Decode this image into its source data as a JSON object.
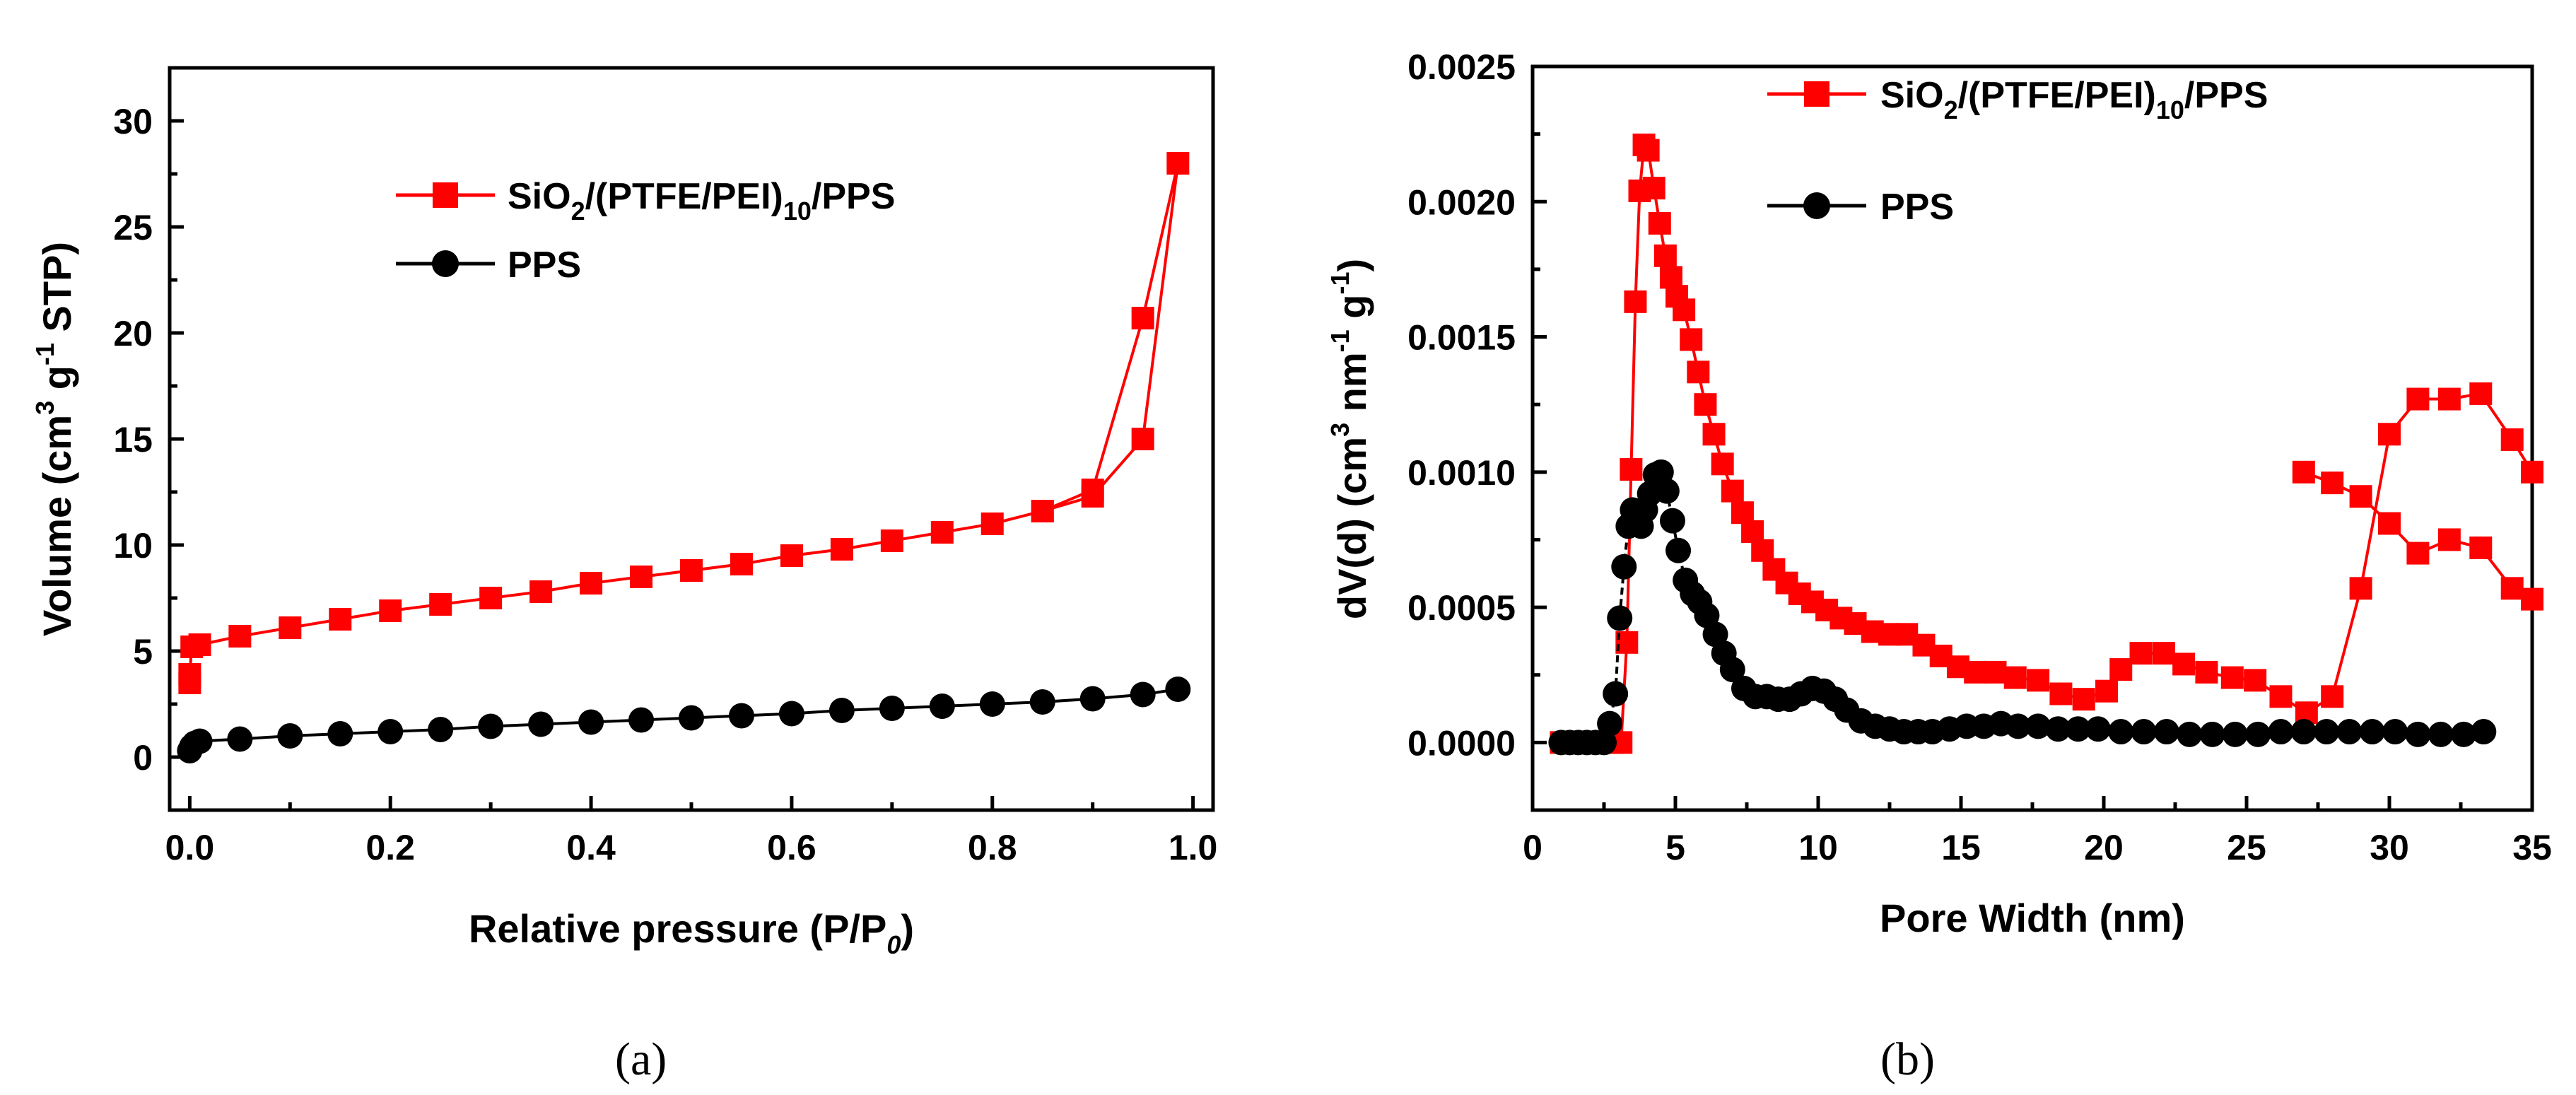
{
  "chart_data": [
    {
      "type": "line",
      "panel_label": "(a)",
      "xlabel_main": "Relative pressure (P/P",
      "xlabel_sub": "0",
      "xlabel_end": ")",
      "ylabel": {
        "a": "Volume (cm",
        "sup1": "3",
        "b": " g",
        "sup2": "-1",
        "c": " STP",
        "d": ")"
      },
      "xlim": [
        -0.02,
        1.02
      ],
      "ylim": [
        -2.5,
        32.5
      ],
      "xticks": [
        "0.0",
        "0.2",
        "0.4",
        "0.6",
        "0.8",
        "1.0"
      ],
      "xtick_values": [
        0,
        0.2,
        0.4,
        0.6,
        0.8,
        1.0
      ],
      "yticks": [
        "0",
        "5",
        "10",
        "15",
        "20",
        "25",
        "30"
      ],
      "ytick_values": [
        0,
        5,
        10,
        15,
        20,
        25,
        30
      ],
      "legend_position": "top-left",
      "series": [
        {
          "name_a": "SiO",
          "name_sub1": "2",
          "name_b": "/(PTFE/PEI)",
          "name_sub2": "10",
          "name_c": "/PPS",
          "color": "#ff0000",
          "marker": "square",
          "x": [
            0.0,
            0.0,
            0.002,
            0.01,
            0.05,
            0.1,
            0.15,
            0.2,
            0.25,
            0.3,
            0.35,
            0.4,
            0.45,
            0.5,
            0.55,
            0.6,
            0.65,
            0.7,
            0.75,
            0.8,
            0.85,
            0.9,
            0.95,
            0.985,
            0.95,
            0.9,
            0.85
          ],
          "y": [
            3.5,
            3.9,
            5.2,
            5.3,
            5.7,
            6.1,
            6.5,
            6.9,
            7.2,
            7.5,
            7.8,
            8.2,
            8.5,
            8.8,
            9.1,
            9.5,
            9.8,
            10.2,
            10.6,
            11.0,
            11.6,
            12.3,
            15.0,
            28.0,
            20.7,
            12.6,
            11.6
          ]
        },
        {
          "name": "PPS",
          "color": "#000000",
          "marker": "circle",
          "x": [
            0.0,
            0.002,
            0.005,
            0.01,
            0.05,
            0.1,
            0.15,
            0.2,
            0.25,
            0.3,
            0.35,
            0.4,
            0.45,
            0.5,
            0.55,
            0.6,
            0.65,
            0.7,
            0.75,
            0.8,
            0.85,
            0.9,
            0.95,
            0.985
          ],
          "y": [
            0.3,
            0.5,
            0.65,
            0.75,
            0.85,
            1.0,
            1.1,
            1.2,
            1.3,
            1.45,
            1.55,
            1.65,
            1.75,
            1.85,
            1.95,
            2.05,
            2.2,
            2.3,
            2.4,
            2.5,
            2.6,
            2.75,
            2.95,
            3.2
          ]
        }
      ]
    },
    {
      "type": "line",
      "panel_label": "(b)",
      "xlabel": "Pore Width (nm)",
      "ylabel": {
        "a": "dV(d) (cm",
        "sup1": "3",
        "b": " nm",
        "sup2": "-1",
        "c": " g",
        "sup3": "-1",
        "d": ")"
      },
      "xlim": [
        0,
        35
      ],
      "ylim": [
        -0.00025,
        0.0025
      ],
      "xticks": [
        "0",
        "5",
        "10",
        "15",
        "20",
        "25",
        "30",
        "35"
      ],
      "xtick_values": [
        0,
        5,
        10,
        15,
        20,
        25,
        30,
        35
      ],
      "yticks": [
        "0.0000",
        "0.0005",
        "0.0010",
        "0.0015",
        "0.0020",
        "0.0025"
      ],
      "ytick_values": [
        0,
        0.0005,
        0.001,
        0.0015,
        0.002,
        0.0025
      ],
      "legend_position": "top-right",
      "series": [
        {
          "name_a": "SiO",
          "name_sub1": "2",
          "name_b": "/(PTFE/PEI)",
          "name_sub2": "10",
          "name_c": "/PPS",
          "color": "#ff0000",
          "marker": "square",
          "x": [
            1.0,
            1.3,
            1.6,
            1.9,
            2.2,
            2.5,
            2.8,
            3.1,
            3.3,
            3.45,
            3.6,
            3.75,
            3.9,
            4.05,
            4.25,
            4.45,
            4.65,
            4.85,
            5.05,
            5.3,
            5.55,
            5.8,
            6.05,
            6.35,
            6.65,
            7.0,
            7.35,
            7.7,
            8.05,
            8.45,
            8.9,
            9.35,
            9.8,
            10.3,
            10.8,
            11.3,
            11.9,
            12.5,
            13.1,
            13.7,
            14.3,
            14.9,
            15.5,
            16.2,
            16.9,
            17.7,
            18.5,
            19.3,
            20.1,
            20.6,
            21.3,
            22.1,
            22.8,
            23.6,
            24.5,
            25.3,
            26.2,
            27.1,
            28.0,
            29.0,
            30.0,
            31.0,
            32.1,
            33.2,
            34.3,
            35.0
          ],
          "y": [
            0.0,
            0.0,
            0.0,
            0.0,
            0.0,
            0.0,
            0.0,
            0.0,
            0.00037,
            0.00101,
            0.00163,
            0.00204,
            0.00221,
            0.00219,
            0.00205,
            0.00192,
            0.0018,
            0.00172,
            0.00165,
            0.0016,
            0.00149,
            0.00137,
            0.00125,
            0.00114,
            0.00103,
            0.00093,
            0.00085,
            0.00078,
            0.00071,
            0.00064,
            0.00059,
            0.00055,
            0.00052,
            0.00049,
            0.00046,
            0.00044,
            0.00041,
            0.0004,
            0.0004,
            0.00036,
            0.00032,
            0.00028,
            0.00026,
            0.00026,
            0.00024,
            0.00023,
            0.00018,
            0.00016,
            0.00019,
            0.00027,
            0.00033,
            0.00033,
            0.00029,
            0.00026,
            0.00024,
            0.00023,
            0.00017,
            0.00011,
            0.00017,
            0.00057,
            0.00114,
            0.00127,
            0.00127,
            0.00129,
            0.00112,
            0.001
          ],
          "x_tail": [
            27.0,
            28.0,
            29.0,
            30.0,
            31.0,
            32.1,
            33.2,
            34.3,
            35.0
          ],
          "y_tail": [
            0.001,
            0.00096,
            0.00091,
            0.00081,
            0.0007,
            0.00075,
            0.00072,
            0.00057,
            0.00053
          ]
        },
        {
          "name": "PPS",
          "color": "#000000",
          "marker": "circle",
          "x": [
            1.0,
            1.3,
            1.6,
            1.9,
            2.2,
            2.5,
            2.7,
            2.9,
            3.05,
            3.2,
            3.35,
            3.5,
            3.65,
            3.8,
            3.95,
            4.1,
            4.3,
            4.5,
            4.7,
            4.9,
            5.1,
            5.35,
            5.6,
            5.85,
            6.1,
            6.4,
            6.7,
            7.0,
            7.4,
            7.8,
            8.2,
            8.6,
            9.0,
            9.4,
            9.8,
            10.2,
            10.6,
            11.0,
            11.5,
            12.0,
            12.5,
            13.0,
            13.5,
            14.0,
            14.6,
            15.2,
            15.8,
            16.4,
            17.0,
            17.7,
            18.4,
            19.1,
            19.8,
            20.6,
            21.4,
            22.2,
            23.0,
            23.8,
            24.6,
            25.4,
            26.2,
            27.0,
            27.8,
            28.6,
            29.4,
            30.2,
            31.0,
            31.8,
            32.6,
            33.3
          ],
          "y": [
            0.0,
            0.0,
            0.0,
            0.0,
            0.0,
            0.0,
            7e-05,
            0.00018,
            0.00046,
            0.00065,
            0.0008,
            0.00086,
            0.00084,
            0.0008,
            0.00086,
            0.00092,
            0.00099,
            0.001,
            0.00093,
            0.00082,
            0.00071,
            0.0006,
            0.00055,
            0.00052,
            0.00047,
            0.0004,
            0.00033,
            0.00027,
            0.0002,
            0.00017,
            0.00017,
            0.00016,
            0.00016,
            0.00018,
            0.0002,
            0.00019,
            0.00016,
            0.00012,
            8e-05,
            6e-05,
            5e-05,
            4e-05,
            4e-05,
            4e-05,
            5e-05,
            6e-05,
            6e-05,
            7e-05,
            6e-05,
            6e-05,
            5e-05,
            5e-05,
            5e-05,
            4e-05,
            4e-05,
            4e-05,
            3e-05,
            3e-05,
            3e-05,
            3e-05,
            4e-05,
            4e-05,
            4e-05,
            4e-05,
            4e-05,
            4e-05,
            3e-05,
            3e-05,
            3e-05,
            4e-05
          ]
        }
      ]
    }
  ]
}
